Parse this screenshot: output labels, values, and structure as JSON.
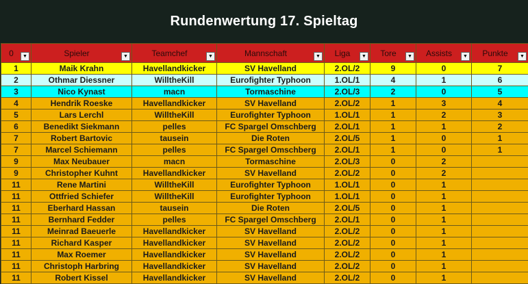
{
  "title": "Rundenwertung 17. Spieltag",
  "columns": [
    {
      "label": "0",
      "name": "rank"
    },
    {
      "label": "Spieler",
      "name": "spieler"
    },
    {
      "label": "Teamchef",
      "name": "teamchef"
    },
    {
      "label": "Mannschaft",
      "name": "mannschaft"
    },
    {
      "label": "Liga",
      "name": "liga"
    },
    {
      "label": "Tore",
      "name": "tore"
    },
    {
      "label": "Assists",
      "name": "assists"
    },
    {
      "label": "Punkte",
      "name": "punkte"
    }
  ],
  "row_colors": {
    "yellow": "#ffff00",
    "lightcyan": "#ccffff",
    "cyan": "#00ffff",
    "orange": "#f0b000",
    "header": "#cc1f1f"
  },
  "rows": [
    {
      "rank": "1",
      "spieler": "Maik Krahn",
      "teamchef": "Havellandkicker",
      "mannschaft": "SV Havelland",
      "liga": "2.OL/2",
      "tore": "9",
      "assists": "0",
      "punkte": "7",
      "color": "yellow"
    },
    {
      "rank": "2",
      "spieler": "Othmar Diessner",
      "teamchef": "WilltheKill",
      "mannschaft": "Eurofighter Typhoon",
      "liga": "1.OL/1",
      "tore": "4",
      "assists": "1",
      "punkte": "6",
      "color": "lightcyan"
    },
    {
      "rank": "3",
      "spieler": "Nico Kynast",
      "teamchef": "macn",
      "mannschaft": "Tormaschine",
      "liga": "2.OL/3",
      "tore": "2",
      "assists": "0",
      "punkte": "5",
      "color": "cyan"
    },
    {
      "rank": "4",
      "spieler": "Hendrik Roeske",
      "teamchef": "Havellandkicker",
      "mannschaft": "SV Havelland",
      "liga": "2.OL/2",
      "tore": "1",
      "assists": "3",
      "punkte": "4",
      "color": "orange"
    },
    {
      "rank": "5",
      "spieler": "Lars Lerchl",
      "teamchef": "WilltheKill",
      "mannschaft": "Eurofighter Typhoon",
      "liga": "1.OL/1",
      "tore": "1",
      "assists": "2",
      "punkte": "3",
      "color": "orange"
    },
    {
      "rank": "6",
      "spieler": "Benedikt Siekmann",
      "teamchef": "pelles",
      "mannschaft": "FC Spargel Omschberg",
      "liga": "2.OL/1",
      "tore": "1",
      "assists": "1",
      "punkte": "2",
      "color": "orange"
    },
    {
      "rank": "7",
      "spieler": "Robert Bartovic",
      "teamchef": "tausein",
      "mannschaft": "Die Roten",
      "liga": "2.OL/5",
      "tore": "1",
      "assists": "0",
      "punkte": "1",
      "color": "orange"
    },
    {
      "rank": "7",
      "spieler": "Marcel Schiemann",
      "teamchef": "pelles",
      "mannschaft": "FC Spargel Omschberg",
      "liga": "2.OL/1",
      "tore": "1",
      "assists": "0",
      "punkte": "1",
      "color": "orange"
    },
    {
      "rank": "9",
      "spieler": "Max Neubauer",
      "teamchef": "macn",
      "mannschaft": "Tormaschine",
      "liga": "2.OL/3",
      "tore": "0",
      "assists": "2",
      "punkte": "",
      "color": "orange"
    },
    {
      "rank": "9",
      "spieler": "Christopher Kuhnt",
      "teamchef": "Havellandkicker",
      "mannschaft": "SV Havelland",
      "liga": "2.OL/2",
      "tore": "0",
      "assists": "2",
      "punkte": "",
      "color": "orange"
    },
    {
      "rank": "11",
      "spieler": "Rene Martini",
      "teamchef": "WilltheKill",
      "mannschaft": "Eurofighter Typhoon",
      "liga": "1.OL/1",
      "tore": "0",
      "assists": "1",
      "punkte": "",
      "color": "orange"
    },
    {
      "rank": "11",
      "spieler": "Ottfried Schiefer",
      "teamchef": "WilltheKill",
      "mannschaft": "Eurofighter Typhoon",
      "liga": "1.OL/1",
      "tore": "0",
      "assists": "1",
      "punkte": "",
      "color": "orange"
    },
    {
      "rank": "11",
      "spieler": "Eberhard Hassan",
      "teamchef": "tausein",
      "mannschaft": "Die Roten",
      "liga": "2.OL/5",
      "tore": "0",
      "assists": "1",
      "punkte": "",
      "color": "orange"
    },
    {
      "rank": "11",
      "spieler": "Bernhard Fedder",
      "teamchef": "pelles",
      "mannschaft": "FC Spargel Omschberg",
      "liga": "2.OL/1",
      "tore": "0",
      "assists": "1",
      "punkte": "",
      "color": "orange"
    },
    {
      "rank": "11",
      "spieler": "Meinrad Baeuerle",
      "teamchef": "Havellandkicker",
      "mannschaft": "SV Havelland",
      "liga": "2.OL/2",
      "tore": "0",
      "assists": "1",
      "punkte": "",
      "color": "orange"
    },
    {
      "rank": "11",
      "spieler": "Richard Kasper",
      "teamchef": "Havellandkicker",
      "mannschaft": "SV Havelland",
      "liga": "2.OL/2",
      "tore": "0",
      "assists": "1",
      "punkte": "",
      "color": "orange"
    },
    {
      "rank": "11",
      "spieler": "Max Roemer",
      "teamchef": "Havellandkicker",
      "mannschaft": "SV Havelland",
      "liga": "2.OL/2",
      "tore": "0",
      "assists": "1",
      "punkte": "",
      "color": "orange"
    },
    {
      "rank": "11",
      "spieler": "Christoph Harbring",
      "teamchef": "Havellandkicker",
      "mannschaft": "SV Havelland",
      "liga": "2.OL/2",
      "tore": "0",
      "assists": "1",
      "punkte": "",
      "color": "orange"
    },
    {
      "rank": "11",
      "spieler": "Robert Kissel",
      "teamchef": "Havellandkicker",
      "mannschaft": "SV Havelland",
      "liga": "2.OL/2",
      "tore": "0",
      "assists": "1",
      "punkte": "",
      "color": "orange"
    }
  ]
}
